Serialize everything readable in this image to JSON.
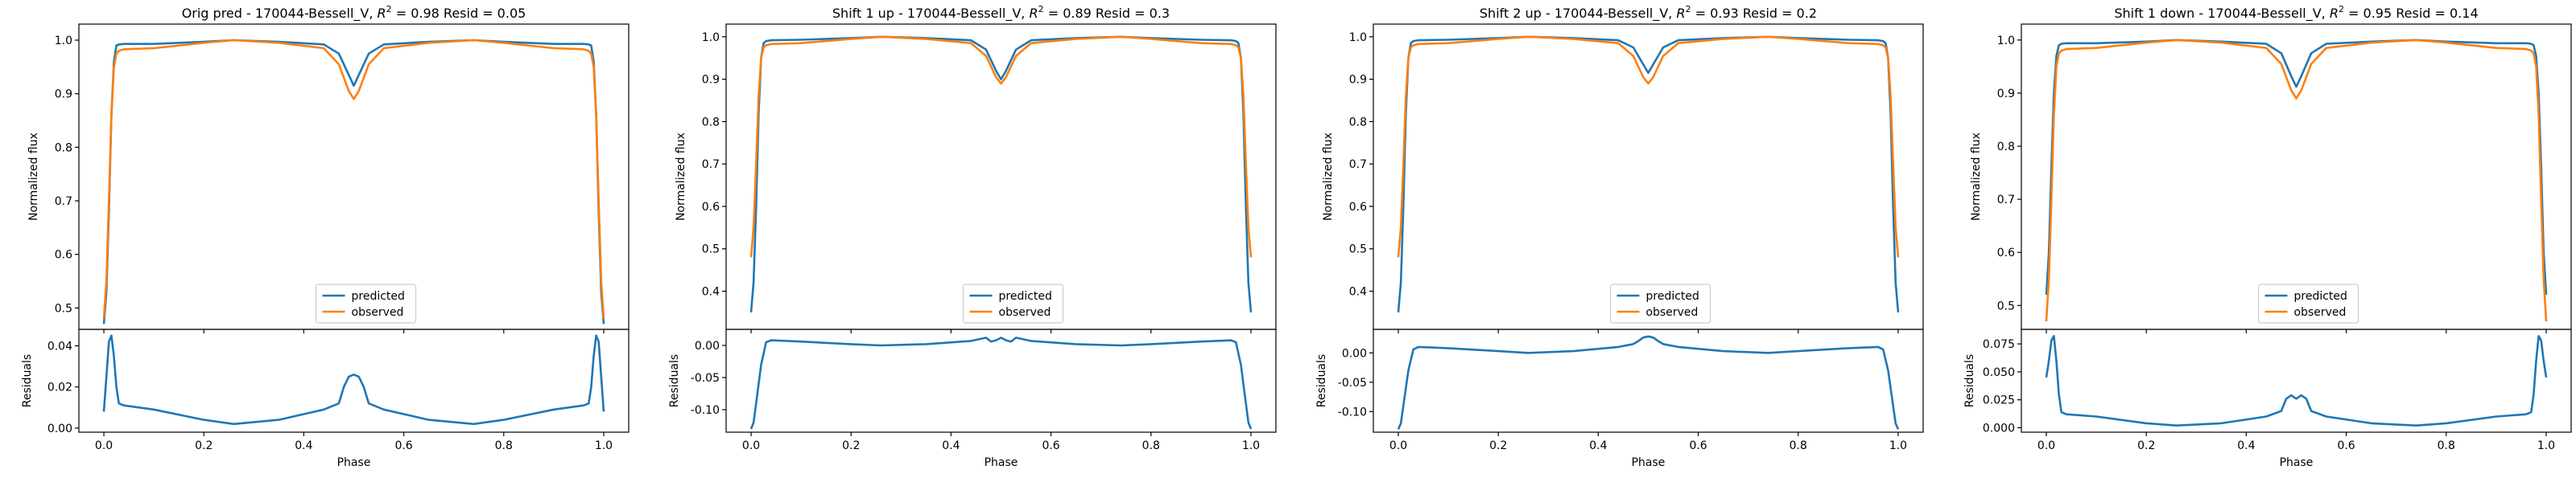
{
  "chart_data": [
    {
      "type": "line",
      "title": "Orig pred - 170044-Bessell_V, $R^2 = 0.98$ Resid = 0.05",
      "title_parts": {
        "prefix": "Orig pred - 170044-Bessell_V, ",
        "r2_label": "R",
        "r2_exp": "2",
        "r2_value": " = 0.98 Resid = 0.05"
      },
      "xlabel": "Phase",
      "ylabel": "Normalized flux",
      "ylabel_resid": "Residuals",
      "xlim": [
        -0.05,
        1.05
      ],
      "ylim": [
        0.46,
        1.03
      ],
      "ylim_resid": [
        -0.002,
        0.048
      ],
      "x_ticks": [
        "0.0",
        "0.2",
        "0.4",
        "0.6",
        "0.8",
        "1.0"
      ],
      "y_ticks": [
        "0.5",
        "0.6",
        "0.7",
        "0.8",
        "0.9",
        "1.0"
      ],
      "y_ticks_resid": [
        "0.00",
        "0.02",
        "0.04"
      ],
      "legend": {
        "position": "lower center",
        "entries": [
          "predicted",
          "observed"
        ]
      },
      "series": [
        {
          "name": "predicted",
          "x": [
            0.0,
            0.005,
            0.01,
            0.015,
            0.02,
            0.025,
            0.03,
            0.04,
            0.1,
            0.2,
            0.26,
            0.35,
            0.44,
            0.47,
            0.49,
            0.5,
            0.51,
            0.53,
            0.56,
            0.65,
            0.74,
            0.8,
            0.9,
            0.96,
            0.97,
            0.975,
            0.98,
            0.985,
            0.99,
            0.995,
            1.0
          ],
          "y": [
            0.47,
            0.53,
            0.68,
            0.86,
            0.96,
            0.99,
            0.992,
            0.993,
            0.993,
            0.997,
            1.0,
            0.997,
            0.992,
            0.975,
            0.935,
            0.915,
            0.935,
            0.975,
            0.992,
            0.997,
            1.0,
            0.997,
            0.993,
            0.993,
            0.992,
            0.99,
            0.96,
            0.86,
            0.68,
            0.53,
            0.47
          ]
        },
        {
          "name": "observed",
          "x": [
            0.0,
            0.005,
            0.01,
            0.015,
            0.02,
            0.025,
            0.03,
            0.04,
            0.1,
            0.2,
            0.26,
            0.35,
            0.44,
            0.47,
            0.49,
            0.5,
            0.51,
            0.53,
            0.56,
            0.65,
            0.74,
            0.8,
            0.9,
            0.96,
            0.97,
            0.975,
            0.98,
            0.985,
            0.99,
            0.995,
            1.0
          ],
          "y": [
            0.48,
            0.55,
            0.7,
            0.86,
            0.95,
            0.975,
            0.98,
            0.983,
            0.985,
            0.995,
            1.0,
            0.995,
            0.985,
            0.955,
            0.905,
            0.89,
            0.905,
            0.955,
            0.985,
            0.995,
            1.0,
            0.995,
            0.985,
            0.983,
            0.98,
            0.975,
            0.95,
            0.86,
            0.7,
            0.55,
            0.48
          ]
        }
      ],
      "residuals": {
        "x": [
          0.0,
          0.005,
          0.01,
          0.015,
          0.02,
          0.025,
          0.03,
          0.04,
          0.1,
          0.2,
          0.26,
          0.35,
          0.44,
          0.47,
          0.48,
          0.49,
          0.5,
          0.51,
          0.52,
          0.53,
          0.56,
          0.65,
          0.74,
          0.8,
          0.9,
          0.96,
          0.97,
          0.975,
          0.98,
          0.985,
          0.99,
          0.995,
          1.0
        ],
        "y": [
          0.008,
          0.025,
          0.042,
          0.045,
          0.035,
          0.02,
          0.012,
          0.011,
          0.009,
          0.004,
          0.002,
          0.004,
          0.009,
          0.012,
          0.02,
          0.025,
          0.026,
          0.025,
          0.02,
          0.012,
          0.009,
          0.004,
          0.002,
          0.004,
          0.009,
          0.011,
          0.012,
          0.02,
          0.035,
          0.045,
          0.042,
          0.025,
          0.008
        ]
      }
    },
    {
      "type": "line",
      "title": "Shift 1 up - 170044-Bessell_V, $R^2 = 0.89$ Resid = 0.3",
      "title_parts": {
        "prefix": "Shift 1 up - 170044-Bessell_V, ",
        "r2_label": "R",
        "r2_exp": "2",
        "r2_value": " = 0.89 Resid = 0.3"
      },
      "xlabel": "Phase",
      "ylabel": "Normalized flux",
      "ylabel_resid": "Residuals",
      "xlim": [
        -0.05,
        1.05
      ],
      "ylim": [
        0.31,
        1.03
      ],
      "ylim_resid": [
        -0.135,
        0.025
      ],
      "x_ticks": [
        "0.0",
        "0.2",
        "0.4",
        "0.6",
        "0.8",
        "1.0"
      ],
      "y_ticks": [
        "0.4",
        "0.5",
        "0.6",
        "0.7",
        "0.8",
        "0.9",
        "1.0"
      ],
      "y_ticks_resid": [
        "0.00",
        "-0.05",
        "-0.10"
      ],
      "legend": {
        "position": "lower center",
        "entries": [
          "predicted",
          "observed"
        ]
      },
      "series": [
        {
          "name": "predicted",
          "x": [
            0.0,
            0.005,
            0.01,
            0.015,
            0.02,
            0.025,
            0.03,
            0.04,
            0.1,
            0.2,
            0.26,
            0.35,
            0.44,
            0.47,
            0.49,
            0.5,
            0.51,
            0.53,
            0.56,
            0.65,
            0.74,
            0.8,
            0.9,
            0.96,
            0.97,
            0.975,
            0.98,
            0.985,
            0.99,
            0.995,
            1.0
          ],
          "y": [
            0.35,
            0.42,
            0.6,
            0.82,
            0.95,
            0.985,
            0.99,
            0.992,
            0.993,
            0.997,
            1.0,
            0.997,
            0.992,
            0.97,
            0.92,
            0.9,
            0.92,
            0.97,
            0.992,
            0.997,
            1.0,
            0.997,
            0.993,
            0.992,
            0.99,
            0.985,
            0.95,
            0.82,
            0.6,
            0.42,
            0.35
          ]
        },
        {
          "name": "observed",
          "x": [
            0.0,
            0.005,
            0.01,
            0.015,
            0.02,
            0.025,
            0.03,
            0.04,
            0.1,
            0.2,
            0.26,
            0.35,
            0.44,
            0.47,
            0.49,
            0.5,
            0.51,
            0.53,
            0.56,
            0.65,
            0.74,
            0.8,
            0.9,
            0.96,
            0.97,
            0.975,
            0.98,
            0.985,
            0.99,
            0.995,
            1.0
          ],
          "y": [
            0.48,
            0.55,
            0.7,
            0.86,
            0.95,
            0.975,
            0.98,
            0.983,
            0.985,
            0.995,
            1.0,
            0.995,
            0.985,
            0.955,
            0.905,
            0.89,
            0.905,
            0.955,
            0.985,
            0.995,
            1.0,
            0.995,
            0.985,
            0.983,
            0.98,
            0.975,
            0.95,
            0.86,
            0.7,
            0.55,
            0.48
          ]
        }
      ],
      "residuals": {
        "x": [
          0.0,
          0.005,
          0.01,
          0.02,
          0.03,
          0.04,
          0.1,
          0.2,
          0.26,
          0.35,
          0.44,
          0.47,
          0.48,
          0.49,
          0.5,
          0.51,
          0.52,
          0.53,
          0.56,
          0.65,
          0.74,
          0.8,
          0.9,
          0.96,
          0.97,
          0.98,
          0.99,
          0.995,
          1.0
        ],
        "y": [
          -0.13,
          -0.12,
          -0.09,
          -0.03,
          0.005,
          0.008,
          0.006,
          0.002,
          0.0,
          0.002,
          0.007,
          0.012,
          0.006,
          0.008,
          0.012,
          0.008,
          0.006,
          0.012,
          0.007,
          0.002,
          0.0,
          0.002,
          0.006,
          0.008,
          0.005,
          -0.03,
          -0.09,
          -0.12,
          -0.13
        ]
      }
    },
    {
      "type": "line",
      "title": "Shift 2 up - 170044-Bessell_V, $R^2 = 0.93$ Resid = 0.2",
      "title_parts": {
        "prefix": "Shift 2 up - 170044-Bessell_V, ",
        "r2_label": "R",
        "r2_exp": "2",
        "r2_value": " = 0.93 Resid = 0.2"
      },
      "xlabel": "Phase",
      "ylabel": "Normalized flux",
      "ylabel_resid": "Residuals",
      "xlim": [
        -0.05,
        1.05
      ],
      "ylim": [
        0.31,
        1.03
      ],
      "ylim_resid": [
        -0.135,
        0.04
      ],
      "x_ticks": [
        "0.0",
        "0.2",
        "0.4",
        "0.6",
        "0.8",
        "1.0"
      ],
      "y_ticks": [
        "0.4",
        "0.5",
        "0.6",
        "0.7",
        "0.8",
        "0.9",
        "1.0"
      ],
      "y_ticks_resid": [
        "0.00",
        "-0.05",
        "-0.10"
      ],
      "legend": {
        "position": "lower center",
        "entries": [
          "predicted",
          "observed"
        ]
      },
      "series": [
        {
          "name": "predicted",
          "x": [
            0.0,
            0.005,
            0.01,
            0.015,
            0.02,
            0.025,
            0.03,
            0.04,
            0.1,
            0.2,
            0.26,
            0.35,
            0.44,
            0.47,
            0.49,
            0.5,
            0.51,
            0.53,
            0.56,
            0.65,
            0.74,
            0.8,
            0.9,
            0.96,
            0.97,
            0.975,
            0.98,
            0.985,
            0.99,
            0.995,
            1.0
          ],
          "y": [
            0.35,
            0.42,
            0.6,
            0.82,
            0.95,
            0.985,
            0.99,
            0.992,
            0.993,
            0.997,
            1.0,
            0.997,
            0.992,
            0.975,
            0.935,
            0.915,
            0.935,
            0.975,
            0.992,
            0.997,
            1.0,
            0.997,
            0.993,
            0.992,
            0.99,
            0.985,
            0.95,
            0.82,
            0.6,
            0.42,
            0.35
          ]
        },
        {
          "name": "observed",
          "x": [
            0.0,
            0.005,
            0.01,
            0.015,
            0.02,
            0.025,
            0.03,
            0.04,
            0.1,
            0.2,
            0.26,
            0.35,
            0.44,
            0.47,
            0.49,
            0.5,
            0.51,
            0.53,
            0.56,
            0.65,
            0.74,
            0.8,
            0.9,
            0.96,
            0.97,
            0.975,
            0.98,
            0.985,
            0.99,
            0.995,
            1.0
          ],
          "y": [
            0.48,
            0.55,
            0.7,
            0.86,
            0.95,
            0.975,
            0.98,
            0.983,
            0.985,
            0.995,
            1.0,
            0.995,
            0.985,
            0.955,
            0.905,
            0.89,
            0.905,
            0.955,
            0.985,
            0.995,
            1.0,
            0.995,
            0.985,
            0.983,
            0.98,
            0.975,
            0.95,
            0.86,
            0.7,
            0.55,
            0.48
          ]
        }
      ],
      "residuals": {
        "x": [
          0.0,
          0.005,
          0.01,
          0.02,
          0.03,
          0.04,
          0.1,
          0.2,
          0.26,
          0.35,
          0.44,
          0.47,
          0.48,
          0.49,
          0.5,
          0.51,
          0.52,
          0.53,
          0.56,
          0.65,
          0.74,
          0.8,
          0.9,
          0.96,
          0.97,
          0.98,
          0.99,
          0.995,
          1.0
        ],
        "y": [
          -0.13,
          -0.12,
          -0.09,
          -0.03,
          0.006,
          0.01,
          0.008,
          0.003,
          0.0,
          0.003,
          0.01,
          0.015,
          0.02,
          0.026,
          0.028,
          0.026,
          0.02,
          0.015,
          0.01,
          0.003,
          0.0,
          0.003,
          0.008,
          0.01,
          0.006,
          -0.03,
          -0.09,
          -0.12,
          -0.13
        ]
      }
    },
    {
      "type": "line",
      "title": "Shift 1 down - 170044-Bessell_V, $R^2 = 0.95$ Resid = 0.14",
      "title_parts": {
        "prefix": "Shift 1 down - 170044-Bessell_V, ",
        "r2_label": "R",
        "r2_exp": "2",
        "r2_value": " = 0.95 Resid = 0.14"
      },
      "xlabel": "Phase",
      "ylabel": "Normalized flux",
      "ylabel_resid": "Residuals",
      "xlim": [
        -0.05,
        1.05
      ],
      "ylim": [
        0.455,
        1.03
      ],
      "ylim_resid": [
        -0.004,
        0.088
      ],
      "x_ticks": [
        "0.0",
        "0.2",
        "0.4",
        "0.6",
        "0.8",
        "1.0"
      ],
      "y_ticks": [
        "0.5",
        "0.6",
        "0.7",
        "0.8",
        "0.9",
        "1.0"
      ],
      "y_ticks_resid": [
        "0.000",
        "0.025",
        "0.050",
        "0.075"
      ],
      "legend": {
        "position": "lower center",
        "entries": [
          "predicted",
          "observed"
        ]
      },
      "series": [
        {
          "name": "predicted",
          "x": [
            0.0,
            0.005,
            0.01,
            0.015,
            0.02,
            0.025,
            0.03,
            0.04,
            0.1,
            0.2,
            0.26,
            0.35,
            0.44,
            0.47,
            0.49,
            0.5,
            0.51,
            0.53,
            0.56,
            0.65,
            0.74,
            0.8,
            0.9,
            0.96,
            0.97,
            0.975,
            0.98,
            0.985,
            0.99,
            0.995,
            1.0
          ],
          "y": [
            0.52,
            0.6,
            0.76,
            0.9,
            0.97,
            0.99,
            0.993,
            0.994,
            0.994,
            0.997,
            1.0,
            0.997,
            0.993,
            0.975,
            0.932,
            0.912,
            0.932,
            0.975,
            0.993,
            0.997,
            1.0,
            0.997,
            0.994,
            0.994,
            0.993,
            0.99,
            0.97,
            0.9,
            0.76,
            0.6,
            0.52
          ]
        },
        {
          "name": "observed",
          "x": [
            0.0,
            0.005,
            0.01,
            0.015,
            0.02,
            0.025,
            0.03,
            0.04,
            0.1,
            0.2,
            0.26,
            0.35,
            0.44,
            0.47,
            0.49,
            0.5,
            0.51,
            0.53,
            0.56,
            0.65,
            0.74,
            0.8,
            0.9,
            0.96,
            0.97,
            0.975,
            0.98,
            0.985,
            0.99,
            0.995,
            1.0
          ],
          "y": [
            0.47,
            0.55,
            0.7,
            0.86,
            0.95,
            0.975,
            0.98,
            0.983,
            0.985,
            0.995,
            1.0,
            0.995,
            0.985,
            0.955,
            0.905,
            0.89,
            0.905,
            0.955,
            0.985,
            0.995,
            1.0,
            0.995,
            0.985,
            0.983,
            0.98,
            0.975,
            0.95,
            0.86,
            0.7,
            0.55,
            0.47
          ]
        }
      ],
      "residuals": {
        "x": [
          0.0,
          0.005,
          0.01,
          0.015,
          0.02,
          0.025,
          0.03,
          0.04,
          0.1,
          0.2,
          0.26,
          0.35,
          0.44,
          0.47,
          0.48,
          0.49,
          0.5,
          0.51,
          0.52,
          0.53,
          0.56,
          0.65,
          0.74,
          0.8,
          0.9,
          0.96,
          0.97,
          0.975,
          0.98,
          0.985,
          0.99,
          0.995,
          1.0
        ],
        "y": [
          0.045,
          0.06,
          0.078,
          0.082,
          0.06,
          0.03,
          0.014,
          0.012,
          0.01,
          0.004,
          0.002,
          0.004,
          0.01,
          0.015,
          0.026,
          0.029,
          0.026,
          0.029,
          0.026,
          0.015,
          0.01,
          0.004,
          0.002,
          0.004,
          0.01,
          0.012,
          0.014,
          0.03,
          0.06,
          0.082,
          0.078,
          0.06,
          0.045
        ]
      }
    }
  ]
}
